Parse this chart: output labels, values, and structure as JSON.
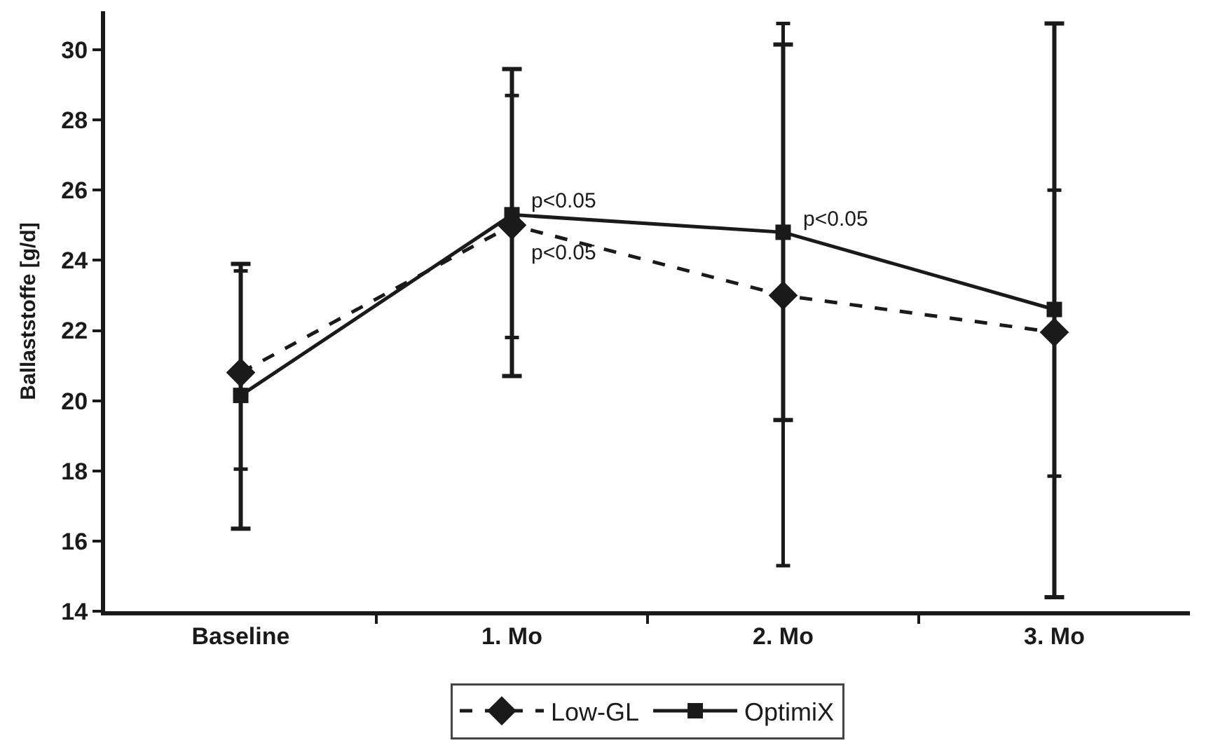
{
  "chart_data": {
    "type": "line",
    "ylabel": "Ballaststoffe [g/d]",
    "categories": [
      "Baseline",
      "1. Mo",
      "2. Mo",
      "3. Mo"
    ],
    "series": [
      {
        "name": "Low-GL",
        "color": "#1a1a1a",
        "marker": "diamond",
        "line_style": "dashed",
        "values": [
          20.8,
          25.0,
          23.0,
          21.95
        ],
        "errors": [
          [
            18.05,
            23.7
          ],
          [
            21.8,
            28.7
          ],
          [
            15.3,
            30.75
          ],
          [
            17.85,
            26.0
          ]
        ]
      },
      {
        "name": "OptimiX",
        "color": "#1a1a1a",
        "marker": "square",
        "line_style": "solid",
        "values": [
          20.15,
          25.3,
          24.8,
          22.6
        ],
        "errors": [
          [
            16.35,
            23.9
          ],
          [
            20.7,
            29.45
          ],
          [
            19.45,
            30.15
          ],
          [
            14.4,
            30.75
          ]
        ]
      }
    ],
    "annotations": [
      "p<0.05",
      "p<0.05",
      "p<0.05"
    ],
    "ylim": [
      14,
      31.1
    ],
    "yticks": [
      14,
      16,
      18,
      20,
      22,
      24,
      26,
      28,
      30
    ],
    "legend": "bottom"
  }
}
